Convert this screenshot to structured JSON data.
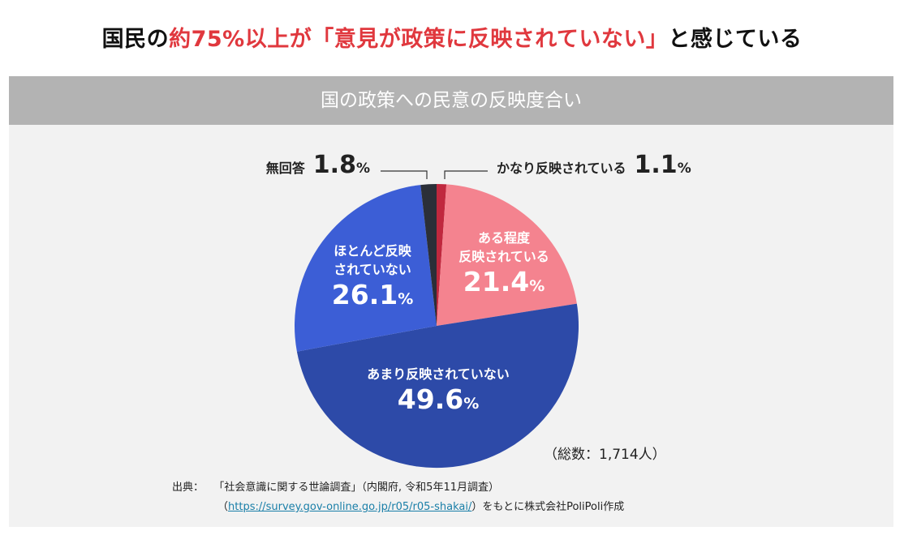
{
  "headline": {
    "prefix": "国民の",
    "highlight": "約75%以上が「意見が政策に反映されていない」",
    "suffix": "と感じている"
  },
  "panel": {
    "title": "国の政策への民意の反映度合い"
  },
  "chart_data": {
    "type": "pie",
    "title": "国の政策への民意の反映度合い",
    "unit": "%",
    "start_angle_deg": 0,
    "direction": "clockwise",
    "slices": [
      {
        "name": "かなり反映されている",
        "value": 1.1,
        "value_text": "1.1",
        "color": "#c0283e"
      },
      {
        "name": "ある程度反映されている",
        "name_lines": [
          "ある程度",
          "反映されている"
        ],
        "value": 21.4,
        "value_text": "21.4",
        "color": "#f4838f"
      },
      {
        "name": "あまり反映されていない",
        "value": 49.6,
        "value_text": "49.6",
        "color": "#2d4aa8"
      },
      {
        "name": "ほとんど反映されていない",
        "name_lines": [
          "ほとんど反映",
          "されていない"
        ],
        "value": 26.1,
        "value_text": "26.1",
        "color": "#3c5ed6"
      },
      {
        "name": "無回答",
        "value": 1.8,
        "value_text": "1.8",
        "color": "#2b2f38"
      }
    ],
    "total_note": "（総数：1,714人）"
  },
  "source": {
    "label": "出典：",
    "text": "「社会意識に関する世論調査」（内閣府, 令和5年11月調査）",
    "open_paren": "（",
    "url": "https://survey.gov-online.go.jp/r05/r05-shakai/",
    "close_text": "）をもとに株式会社PoliPoli作成"
  }
}
